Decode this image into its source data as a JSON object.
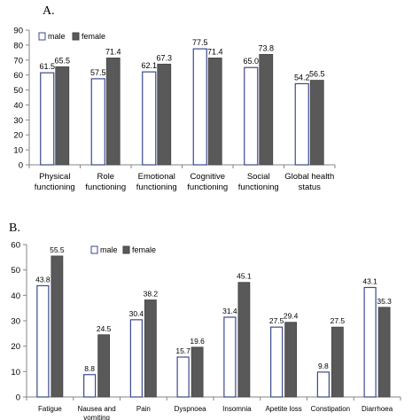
{
  "chart_data": [
    {
      "panel_label": "A.",
      "type": "bar",
      "categories": [
        [
          "Physical",
          "functioning"
        ],
        [
          "Role",
          "functioning"
        ],
        [
          "Emotional",
          "functioning"
        ],
        [
          "Cognitive",
          "functioning"
        ],
        [
          "Social",
          "functioning"
        ],
        [
          "Global health",
          "status"
        ]
      ],
      "series": [
        {
          "name": "male",
          "values": [
            61.5,
            57.5,
            62.1,
            77.5,
            65.0,
            54.2
          ],
          "labels": [
            "61.5",
            "57.5",
            "62.1",
            "77.5",
            "65.0",
            "54.2"
          ],
          "fill": "#ffffff",
          "stroke": "#3b4a8c"
        },
        {
          "name": "female",
          "values": [
            65.5,
            71.4,
            67.3,
            71.4,
            73.8,
            56.5
          ],
          "labels": [
            "65.5",
            "71.4",
            "67.3",
            "71.4",
            "73.8",
            "56.5"
          ],
          "fill": "#595959",
          "stroke": "#444444"
        }
      ],
      "ylim": [
        0,
        90
      ],
      "yticks": [
        0,
        10,
        20,
        30,
        40,
        50,
        60,
        70,
        80,
        90
      ],
      "legend": "top-left",
      "grid": false
    },
    {
      "panel_label": "B.",
      "type": "bar",
      "categories": [
        [
          "Fatigue"
        ],
        [
          "Nausea and",
          "vomiting"
        ],
        [
          "Pain"
        ],
        [
          "Dyspnoea"
        ],
        [
          "Insomnia"
        ],
        [
          "Apetite loss"
        ],
        [
          "Constipation"
        ],
        [
          "Diarrhoea"
        ]
      ],
      "series": [
        {
          "name": "male",
          "values": [
            43.8,
            8.8,
            30.4,
            15.7,
            31.4,
            27.5,
            9.8,
            43.1
          ],
          "labels": [
            "43.8",
            "8.8",
            "30.4",
            "15.7",
            "31.4",
            "27.5",
            "9.8",
            "43.1"
          ],
          "fill": "#ffffff",
          "stroke": "#3b4a8c"
        },
        {
          "name": "female",
          "values": [
            55.5,
            24.5,
            38.2,
            19.6,
            45.1,
            29.4,
            27.5,
            35.3
          ],
          "labels": [
            "55.5",
            "24.5",
            "38.2",
            "19.6",
            "45.1",
            "29.4",
            "27.5",
            "35.3"
          ],
          "fill": "#595959",
          "stroke": "#444444"
        }
      ],
      "ylim": [
        0,
        60
      ],
      "yticks": [
        0,
        10,
        20,
        30,
        40,
        50,
        60
      ],
      "legend": "top-left",
      "grid": false
    }
  ]
}
